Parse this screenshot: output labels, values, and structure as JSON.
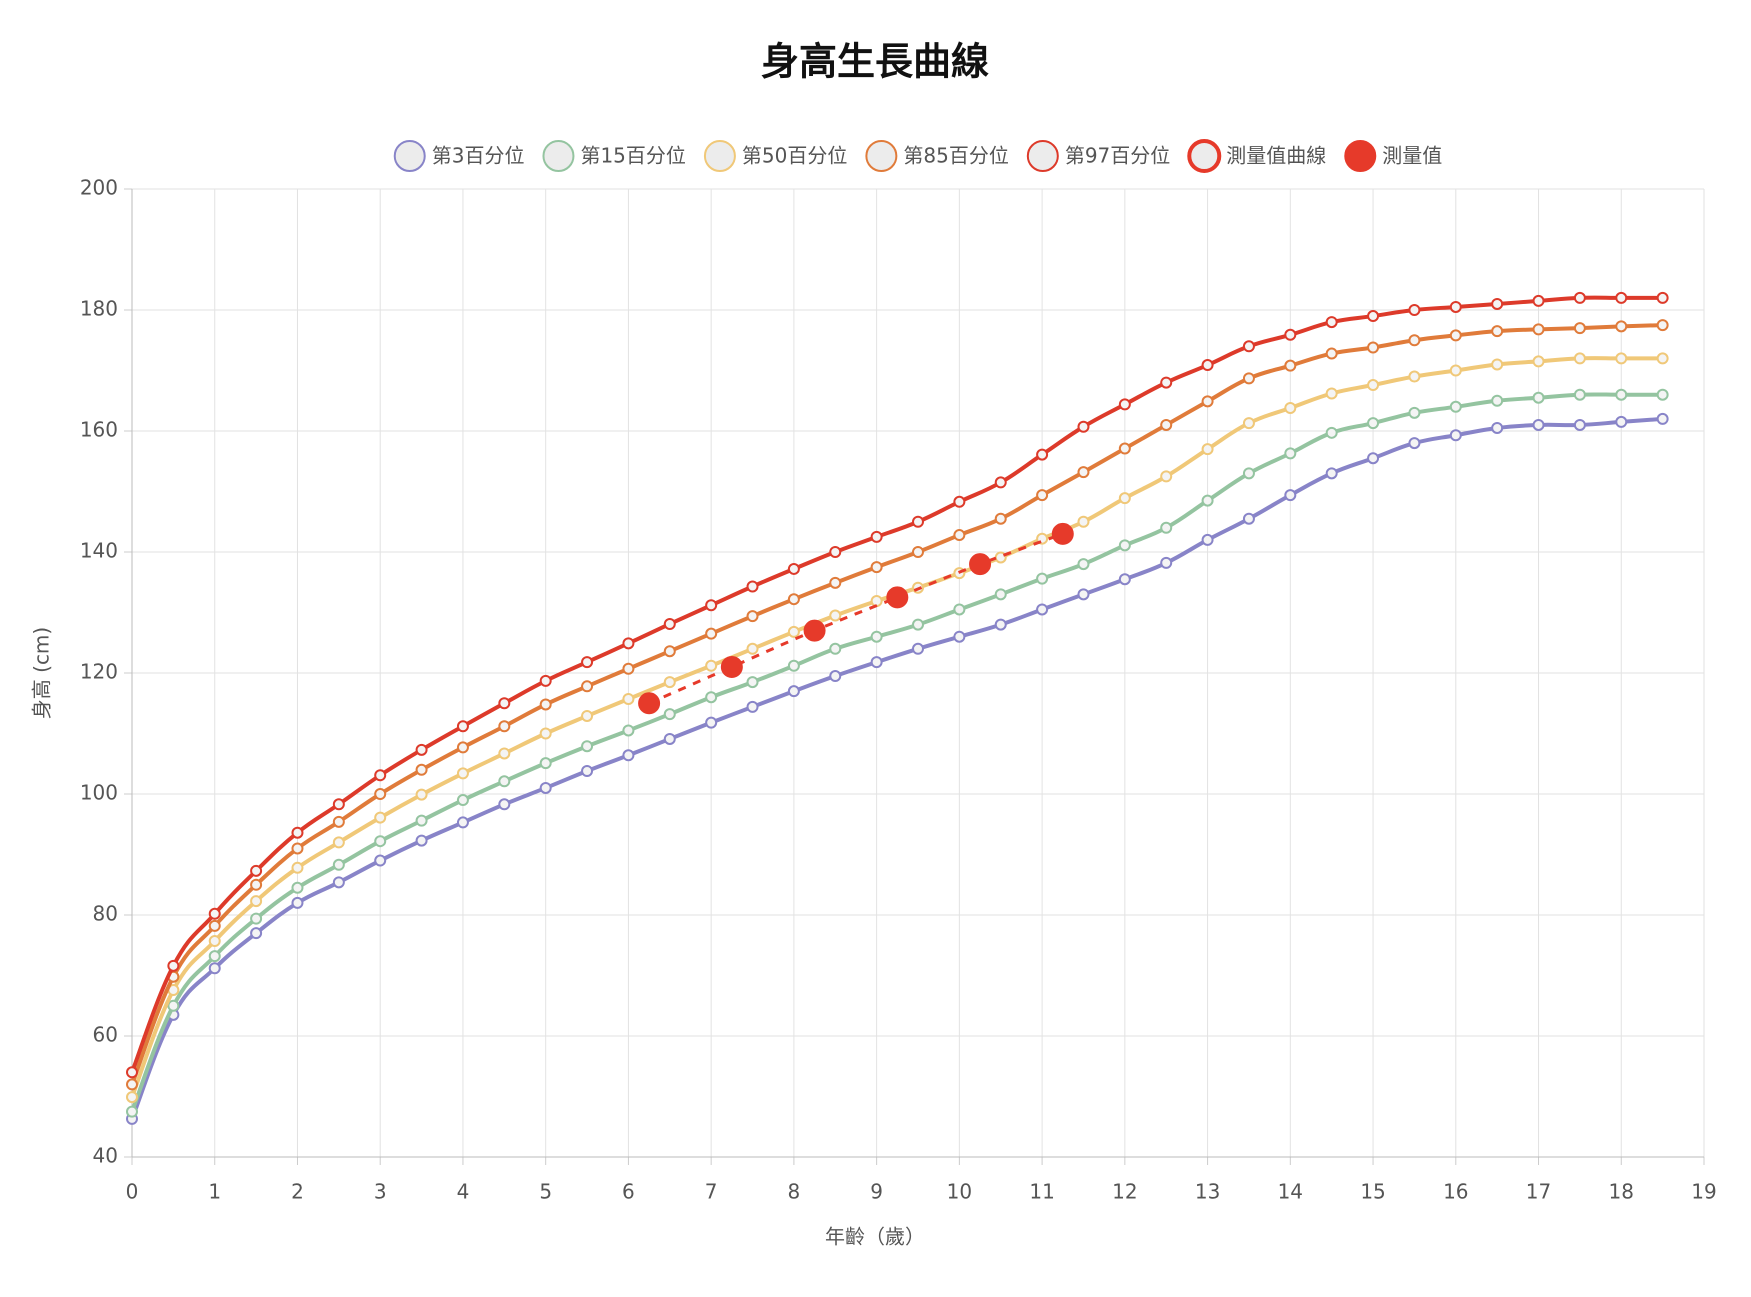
{
  "chart_data": {
    "type": "line",
    "title": "身高生長曲線",
    "x_label": "年齡（歲）",
    "y_label": "身高 (cm)",
    "x": [
      0,
      0.5,
      1,
      1.5,
      2,
      2.5,
      3,
      3.5,
      4,
      4.5,
      5,
      5.5,
      6,
      6.5,
      7,
      7.5,
      8,
      8.5,
      9,
      9.5,
      10,
      10.5,
      11,
      11.5,
      12,
      12.5,
      13,
      13.5,
      14,
      14.5,
      15,
      15.5,
      16,
      16.5,
      17,
      17.5,
      18,
      18.5
    ],
    "series": [
      {
        "name": "第3百分位",
        "color": "#8884c8",
        "values": [
          46.3,
          63.5,
          71.2,
          77,
          82,
          85.4,
          89,
          92.3,
          95.3,
          98.3,
          101,
          103.8,
          106.4,
          109.1,
          111.8,
          114.4,
          117,
          119.5,
          121.8,
          124,
          126,
          128,
          130.5,
          133,
          135.5,
          138.2,
          142,
          145.5,
          149.4,
          153,
          155.5,
          158,
          159.3,
          160.5,
          161,
          161,
          161.5,
          162
        ]
      },
      {
        "name": "第15百分位",
        "color": "#94c4a0",
        "values": [
          47.5,
          65,
          73.2,
          79.4,
          84.5,
          88.3,
          92.2,
          95.6,
          99,
          102.1,
          105.1,
          107.9,
          110.5,
          113.2,
          116,
          118.5,
          121.2,
          124,
          126,
          128,
          130.5,
          133,
          135.6,
          138,
          141.1,
          144,
          148.5,
          153,
          156.3,
          159.7,
          161.3,
          163,
          164,
          165,
          165.5,
          166,
          166,
          166
        ]
      },
      {
        "name": "第50百分位",
        "color": "#f0c878",
        "values": [
          49.9,
          67.6,
          75.7,
          82.3,
          87.8,
          92,
          96.1,
          99.9,
          103.4,
          106.7,
          110,
          112.9,
          115.7,
          118.5,
          121.2,
          124,
          126.8,
          129.5,
          131.9,
          134.1,
          136.5,
          139.1,
          142.2,
          145,
          148.9,
          152.5,
          157,
          161.3,
          163.8,
          166.2,
          167.6,
          169,
          170,
          171,
          171.5,
          172,
          172,
          172
        ]
      },
      {
        "name": "第85百分位",
        "color": "#e07b3a",
        "values": [
          52,
          69.8,
          78.2,
          85,
          91,
          95.4,
          100,
          104,
          107.7,
          111.2,
          114.8,
          117.8,
          120.7,
          123.6,
          126.5,
          129.4,
          132.2,
          134.9,
          137.5,
          140,
          142.8,
          145.5,
          149.4,
          153.2,
          157.1,
          161,
          164.9,
          168.7,
          170.8,
          172.8,
          173.8,
          175,
          175.8,
          176.5,
          176.8,
          177,
          177.3,
          177.5
        ]
      },
      {
        "name": "第97百分位",
        "color": "#dd3a2a",
        "values": [
          54,
          71.6,
          80.2,
          87.3,
          93.6,
          98.3,
          103.1,
          107.3,
          111.2,
          115,
          118.7,
          121.8,
          124.9,
          128.1,
          131.2,
          134.3,
          137.2,
          140,
          142.5,
          145,
          148.3,
          151.5,
          156.1,
          160.7,
          164.4,
          168,
          170.9,
          174,
          175.9,
          178,
          179,
          180,
          180.5,
          181,
          181.5,
          182,
          182,
          182
        ]
      },
      {
        "name": "測量值曲線",
        "color": "#e63a2a",
        "dashed": true,
        "x": [
          6.25,
          7.25,
          8.25,
          9.25,
          10.25,
          11.25
        ],
        "values": [
          115,
          121,
          127,
          132.5,
          138,
          143
        ]
      },
      {
        "name": "測量值",
        "color": "#e63a2a",
        "points_only": true,
        "x": [
          6.25,
          7.25,
          8.25,
          9.25,
          10.25,
          11.25
        ],
        "values": [
          115,
          121,
          127,
          132.5,
          138,
          143
        ]
      }
    ],
    "xlim": [
      0,
      19
    ],
    "xticks": [
      0,
      1,
      2,
      3,
      4,
      5,
      6,
      7,
      8,
      9,
      10,
      11,
      12,
      13,
      14,
      15,
      16,
      17,
      18,
      19
    ],
    "ylim": [
      40,
      200
    ],
    "yticks": [
      40,
      60,
      80,
      100,
      120,
      140,
      160,
      180,
      200
    ],
    "grid": true,
    "legend": "top"
  }
}
